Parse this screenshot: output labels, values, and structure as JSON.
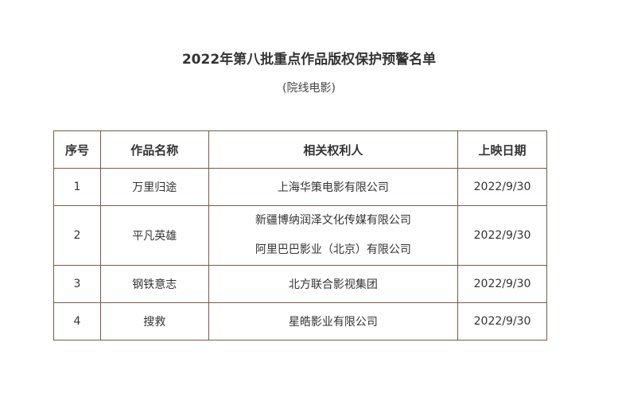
{
  "title": "2022年第八批重点作品版权保护预警名单",
  "subtitle": "(院线电影)",
  "table": {
    "headers": [
      "序号",
      "作品名称",
      "相关权利人",
      "上映日期"
    ],
    "rows": [
      {
        "no": "1",
        "name": "万里归途",
        "holders": [
          "上海华策电影有限公司"
        ],
        "date": "2022/9/30"
      },
      {
        "no": "2",
        "name": "平凡英雄",
        "holders": [
          "新疆博纳润泽文化传媒有限公司",
          "阿里巴巴影业（北京）有限公司"
        ],
        "date": "2022/9/30"
      },
      {
        "no": "3",
        "name": "钢铁意志",
        "holders": [
          "北方联合影视集团"
        ],
        "date": "2022/9/30"
      },
      {
        "no": "4",
        "name": "搜救",
        "holders": [
          "星皓影业有限公司"
        ],
        "date": "2022/9/30"
      }
    ]
  }
}
